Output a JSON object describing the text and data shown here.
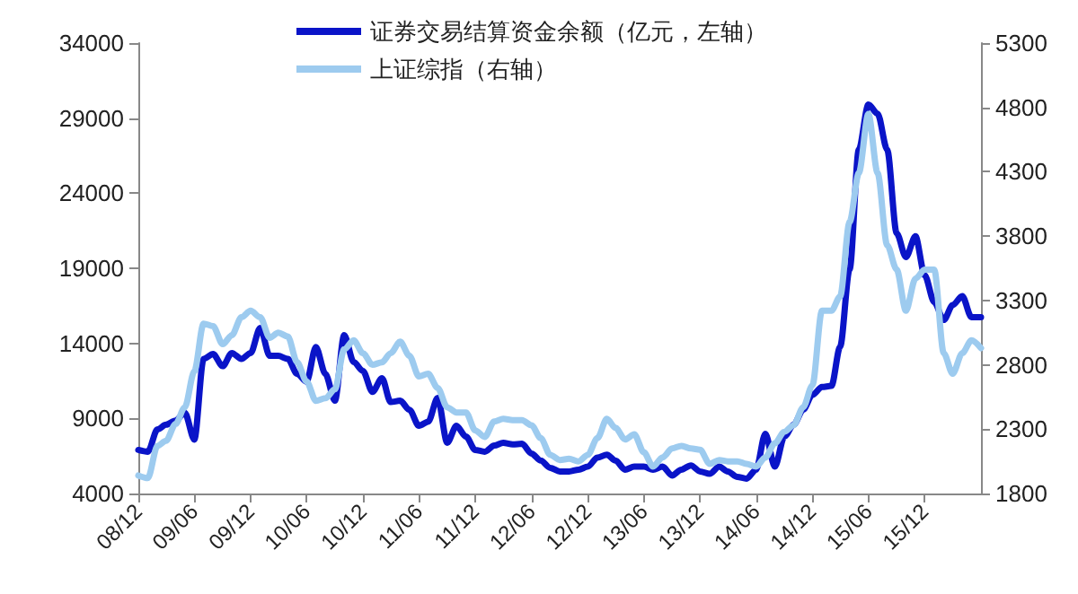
{
  "chart_data": {
    "type": "line",
    "legend": "top",
    "marker": "none",
    "x": [
      "2008-12",
      "2009-01",
      "2009-02",
      "2009-03",
      "2009-04",
      "2009-05",
      "2009-06",
      "2009-07",
      "2009-08",
      "2009-09",
      "2009-10",
      "2009-11",
      "2009-12",
      "2010-01",
      "2010-02",
      "2010-03",
      "2010-04",
      "2010-05",
      "2010-06",
      "2010-07",
      "2010-08",
      "2010-09",
      "2010-10",
      "2010-11",
      "2010-12",
      "2011-01",
      "2011-02",
      "2011-03",
      "2011-04",
      "2011-05",
      "2011-06",
      "2011-07",
      "2011-08",
      "2011-09",
      "2011-10",
      "2011-11",
      "2011-12",
      "2012-01",
      "2012-02",
      "2012-03",
      "2012-04",
      "2012-05",
      "2012-06",
      "2012-07",
      "2012-08",
      "2012-09",
      "2012-10",
      "2012-11",
      "2012-12",
      "2013-01",
      "2013-02",
      "2013-03",
      "2013-04",
      "2013-05",
      "2013-06",
      "2013-07",
      "2013-08",
      "2013-09",
      "2013-10",
      "2013-11",
      "2013-12",
      "2014-01",
      "2014-02",
      "2014-03",
      "2014-04",
      "2014-05",
      "2014-06",
      "2014-07",
      "2014-08",
      "2014-09",
      "2014-10",
      "2014-11",
      "2014-12",
      "2015-01",
      "2015-02",
      "2015-03",
      "2015-04",
      "2015-05",
      "2015-06",
      "2015-07",
      "2015-08",
      "2015-09",
      "2015-10",
      "2015-11",
      "2015-12",
      "2016-01",
      "2016-02",
      "2016-03",
      "2016-04",
      "2016-05",
      "2016-06"
    ],
    "series": [
      {
        "name": "证券交易结算资金余额（亿元，左轴）",
        "color": "#0a14c8",
        "values": [
          6900,
          6780,
          8270,
          8580,
          8860,
          9380,
          7590,
          12960,
          13290,
          12480,
          13360,
          12960,
          13360,
          15030,
          13170,
          13170,
          12960,
          11970,
          11450,
          13760,
          11970,
          10180,
          14550,
          12760,
          12160,
          10770,
          11680,
          10090,
          10180,
          9580,
          8510,
          8780,
          10370,
          7380,
          8510,
          7790,
          6900,
          6780,
          7190,
          7380,
          7270,
          7310,
          6660,
          6190,
          5710,
          5470,
          5470,
          5590,
          5790,
          6390,
          6590,
          6190,
          5590,
          5790,
          5790,
          5590,
          5790,
          5200,
          5590,
          5870,
          5470,
          5310,
          5790,
          5470,
          5110,
          4990,
          5590,
          7980,
          5790,
          7790,
          8580,
          9580,
          10570,
          11090,
          11170,
          13760,
          18940,
          26910,
          29900,
          29300,
          26910,
          21330,
          19740,
          21130,
          18540,
          16750,
          15560,
          16550,
          17150,
          15750,
          15750
        ]
      },
      {
        "name": "上证综指（右轴）",
        "color": "#9dcbef",
        "axis": "y2",
        "values": [
          1940,
          1920,
          2170,
          2210,
          2340,
          2470,
          2750,
          3120,
          3100,
          2960,
          3030,
          3170,
          3220,
          3170,
          3010,
          3050,
          3020,
          2820,
          2670,
          2520,
          2540,
          2610,
          2920,
          2990,
          2890,
          2800,
          2820,
          2890,
          2980,
          2870,
          2710,
          2730,
          2620,
          2470,
          2430,
          2430,
          2290,
          2240,
          2360,
          2380,
          2370,
          2370,
          2330,
          2230,
          2100,
          2060,
          2070,
          2050,
          2100,
          2230,
          2380,
          2310,
          2220,
          2260,
          2120,
          2010,
          2080,
          2150,
          2170,
          2150,
          2140,
          2030,
          2060,
          2050,
          2050,
          2030,
          2010,
          2080,
          2190,
          2280,
          2330,
          2470,
          2640,
          3220,
          3220,
          3330,
          3910,
          4290,
          4750,
          4290,
          3730,
          3540,
          3220,
          3470,
          3540,
          3540,
          2890,
          2730,
          2890,
          2990,
          2930
        ]
      }
    ],
    "xlim": [
      "2008-12",
      "2016-06"
    ],
    "xticks": [
      {
        "value": "2008-12",
        "label": "08/12"
      },
      {
        "value": "2009-06",
        "label": "09/06"
      },
      {
        "value": "2009-12",
        "label": "09/12"
      },
      {
        "value": "2010-06",
        "label": "10/06"
      },
      {
        "value": "2010-12",
        "label": "10/12"
      },
      {
        "value": "2011-06",
        "label": "11/06"
      },
      {
        "value": "2011-12",
        "label": "11/12"
      },
      {
        "value": "2012-06",
        "label": "12/06"
      },
      {
        "value": "2012-12",
        "label": "12/12"
      },
      {
        "value": "2013-06",
        "label": "13/06"
      },
      {
        "value": "2013-12",
        "label": "13/12"
      },
      {
        "value": "2014-06",
        "label": "14/06"
      },
      {
        "value": "2014-12",
        "label": "14/12"
      },
      {
        "value": "2015-06",
        "label": "15/06"
      },
      {
        "value": "2015-12",
        "label": "15/12"
      }
    ],
    "ylim": [
      4000,
      34000
    ],
    "yticks": [
      4000,
      9000,
      14000,
      19000,
      24000,
      29000,
      34000
    ],
    "y2lim": [
      1800,
      5300
    ],
    "y2ticks": [
      1800,
      2300,
      2800,
      3300,
      3800,
      4300,
      4800,
      5300
    ]
  }
}
